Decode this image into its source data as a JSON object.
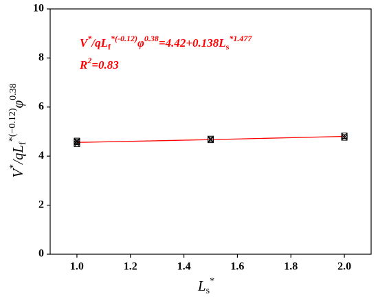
{
  "chart_data": {
    "type": "scatter",
    "x_label": [
      "L",
      "s",
      "*"
    ],
    "y_label": [
      "V",
      "*",
      "/qL",
      "f",
      "*(−0.12)",
      "φ",
      "0.38"
    ],
    "annotations": [
      [
        "V",
        "*",
        "/qL",
        "f",
        "*(-0.12)",
        "φ",
        "0.38",
        "=4.42+0.138L",
        "s",
        "*1.477"
      ],
      [
        "R",
        "2",
        "=0.83"
      ]
    ],
    "points": {
      "color": "#000000",
      "x": [
        1,
        1,
        1,
        1.5,
        1.5,
        2,
        2
      ],
      "values": [
        4.5,
        4.58,
        4.62,
        4.66,
        4.7,
        4.76,
        4.83
      ]
    },
    "fit_line": {
      "color": "#ff0000",
      "x": [
        1,
        1.5,
        2
      ],
      "values": [
        4.558,
        4.671,
        4.804
      ]
    },
    "xlim": [
      0.9,
      2.1
    ],
    "xticks": [
      {
        "value": 1,
        "label": "1.0"
      },
      {
        "value": 1.2,
        "label": "1.2"
      },
      {
        "value": 1.4,
        "label": "1.4"
      },
      {
        "value": 1.6,
        "label": "1.6"
      },
      {
        "value": 1.8,
        "label": "1.8"
      },
      {
        "value": 2,
        "label": "2.0"
      }
    ],
    "ylim": [
      0,
      10
    ],
    "yticks": [
      0,
      2,
      4,
      6,
      8,
      10
    ]
  }
}
